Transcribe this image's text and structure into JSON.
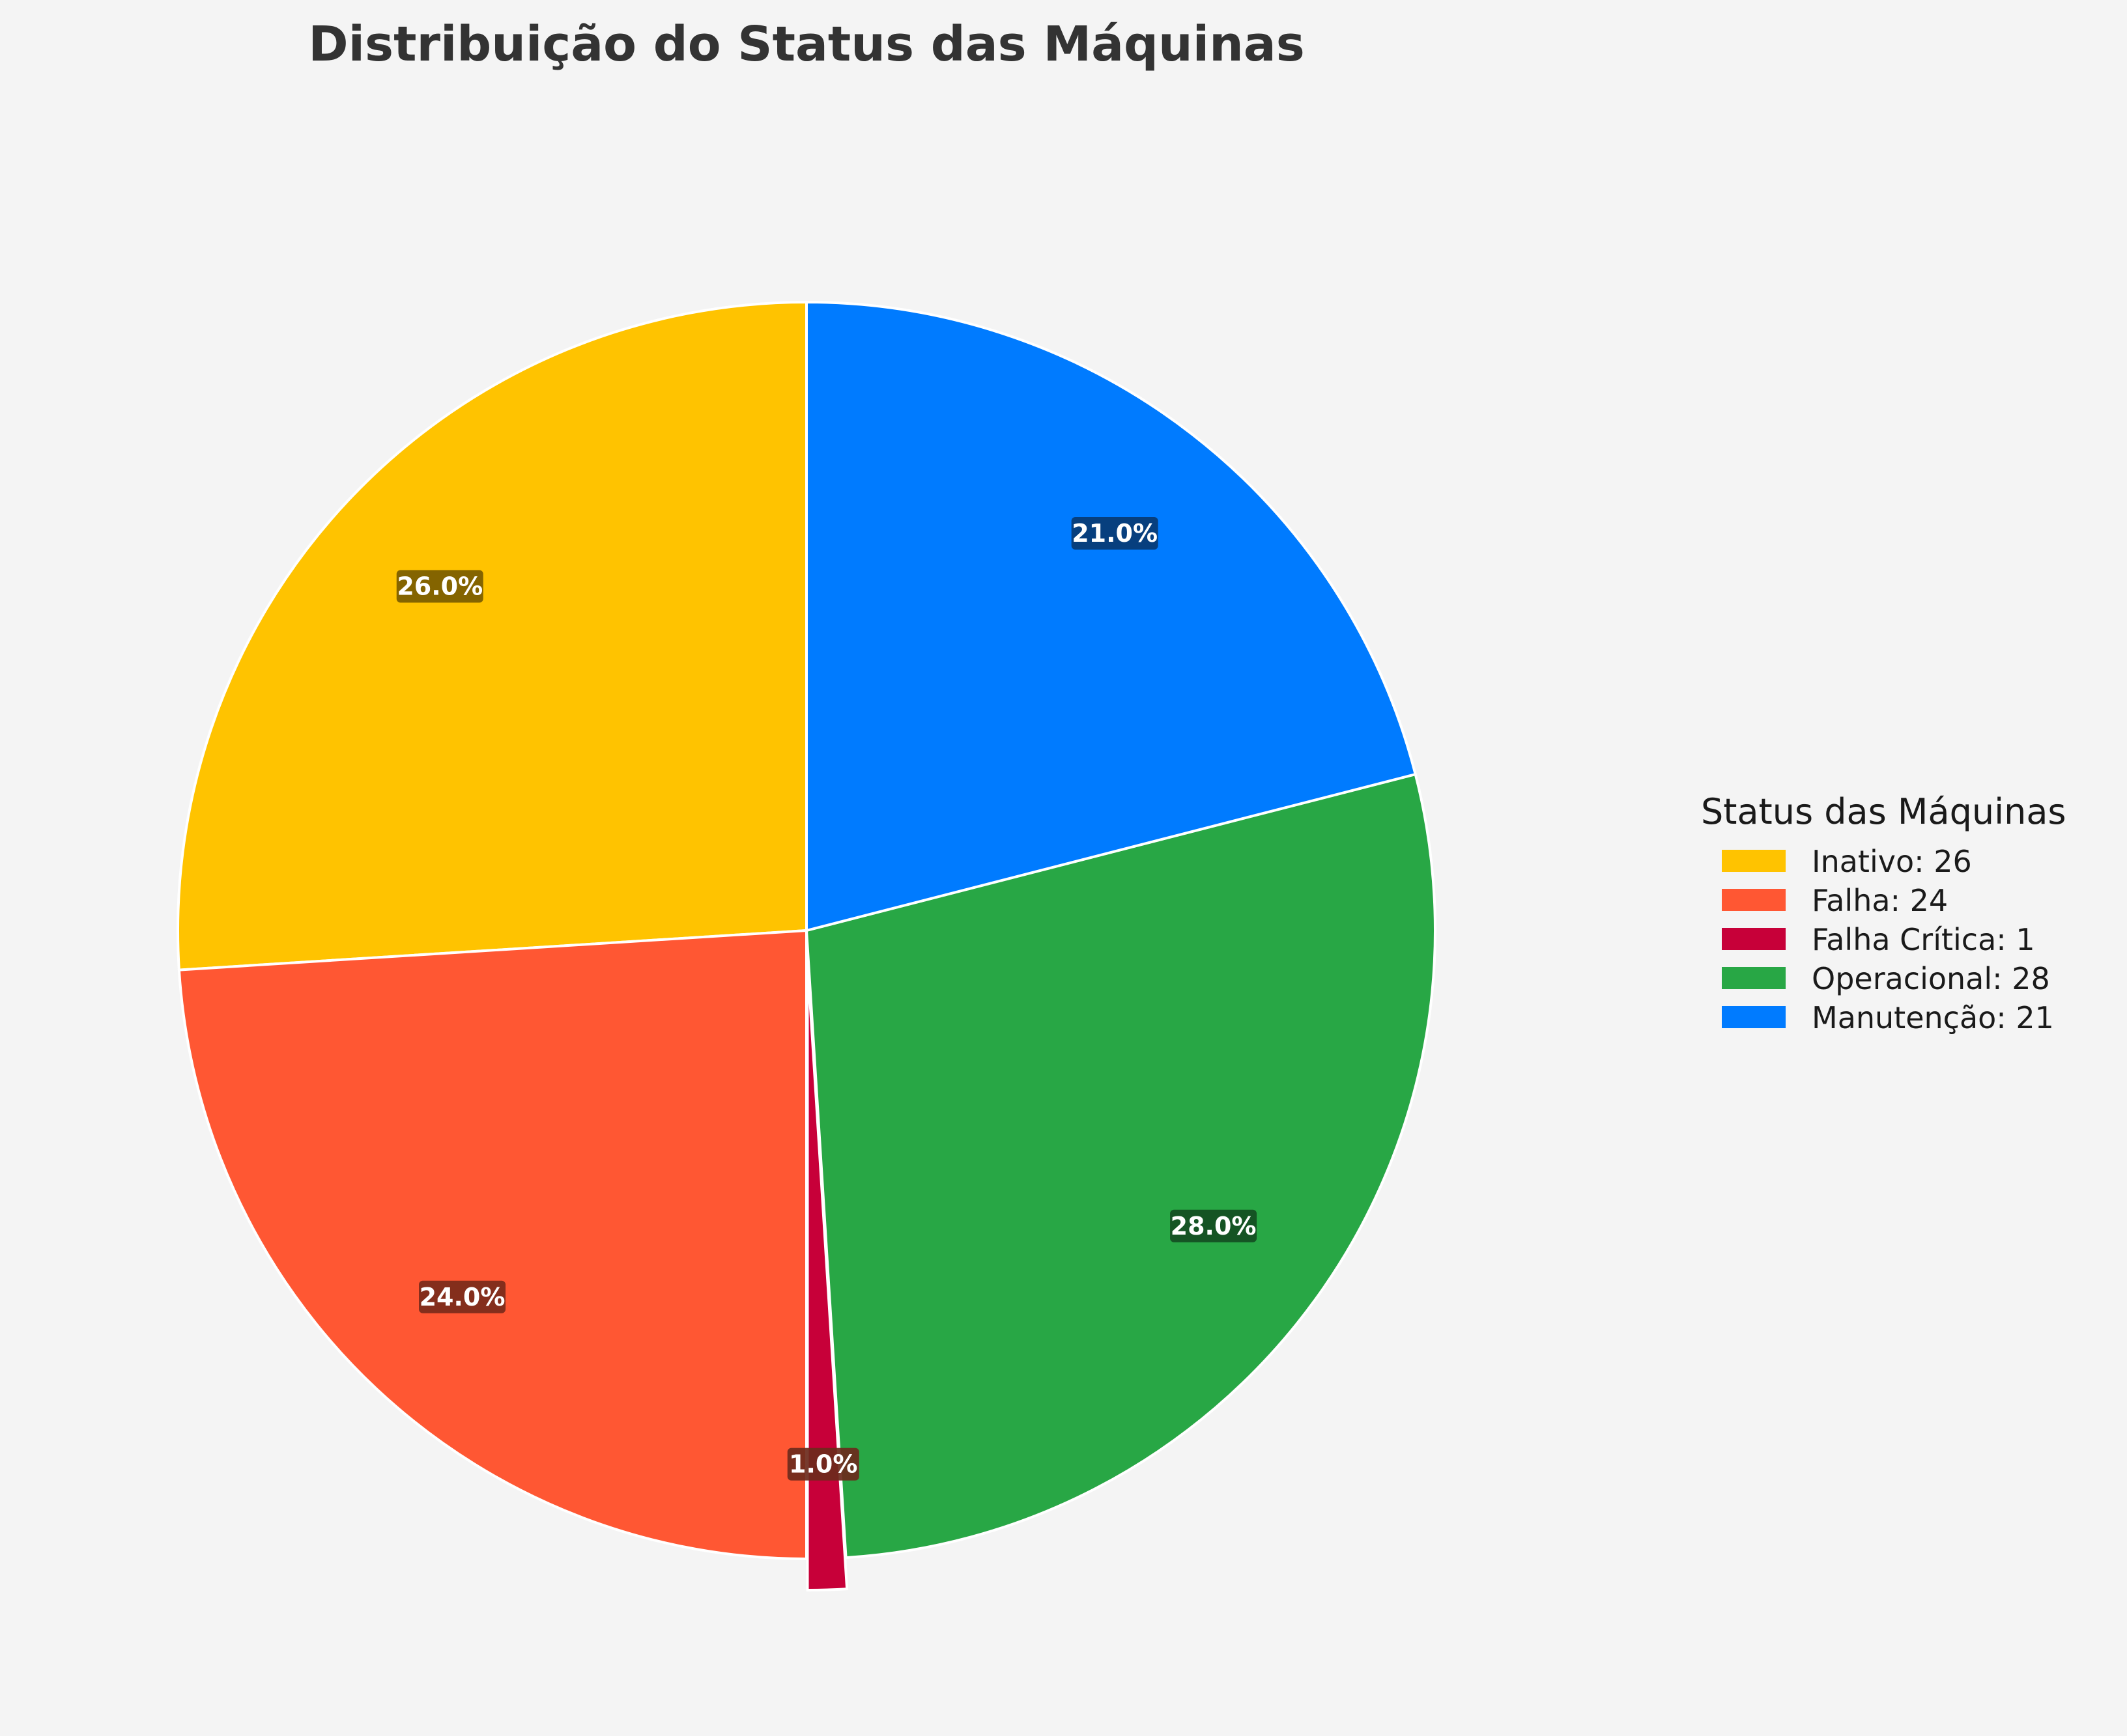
{
  "chart_data": {
    "type": "pie",
    "title": "Distribuição do Status das Máquinas",
    "legend_title": "Status das Máquinas",
    "legend_position": "right",
    "start_angle_deg": 90,
    "direction": "counterclockwise",
    "slices": [
      {
        "name": "Inativo",
        "value": 26,
        "percent_label": "26.0%",
        "legend_label": "Inativo: 26",
        "color": "#FFC300",
        "label_bg": "#7a5c00",
        "exploded": false
      },
      {
        "name": "Falha",
        "value": 24,
        "percent_label": "24.0%",
        "legend_label": "Falha: 24",
        "color": "#FF5733",
        "label_bg": "#7a2a1a",
        "exploded": false
      },
      {
        "name": "Falha Crítica",
        "value": 1,
        "percent_label": "1.0%",
        "legend_label": "Falha Crítica: 1",
        "color": "#C70039",
        "label_bg": "#6b2a1c",
        "exploded": true
      },
      {
        "name": "Operacional",
        "value": 28,
        "percent_label": "28.0%",
        "legend_label": "Operacional: 28",
        "color": "#28A745",
        "label_bg": "#134d22",
        "exploded": false
      },
      {
        "name": "Manutenção",
        "value": 21,
        "percent_label": "21.0%",
        "legend_label": "Manutenção: 21",
        "color": "#007BFF",
        "label_bg": "#083a73",
        "exploded": false
      }
    ]
  }
}
